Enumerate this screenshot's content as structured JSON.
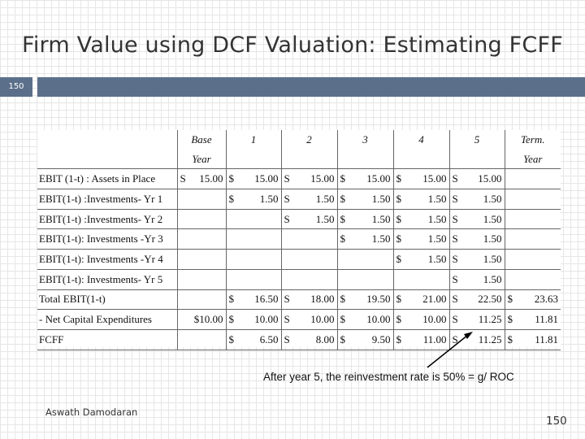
{
  "title": "Firm Value using DCF Valuation: Estimating FCFF",
  "slide_number_tab": "150",
  "table": {
    "headers": [
      "Base",
      "1",
      "2",
      "3",
      "4",
      "5",
      "Term."
    ],
    "subheaders": [
      "Year",
      "",
      "",
      "",
      "",
      "",
      "Year"
    ],
    "rows": [
      {
        "label": "EBIT (1-t) : Assets in Place",
        "cells": [
          [
            "S",
            "15.00"
          ],
          [
            "$",
            "15.00"
          ],
          [
            "S",
            "15.00"
          ],
          [
            "$",
            "15.00"
          ],
          [
            "$",
            "15.00"
          ],
          [
            "S",
            "15.00"
          ],
          [
            "",
            ""
          ]
        ]
      },
      {
        "label": "EBIT(1-t) :Investments- Yr 1",
        "cells": [
          [
            "",
            ""
          ],
          [
            "$",
            "1.50"
          ],
          [
            "S",
            "1.50"
          ],
          [
            "$",
            "1.50"
          ],
          [
            "$",
            "1.50"
          ],
          [
            "S",
            "1.50"
          ],
          [
            "",
            ""
          ]
        ]
      },
      {
        "label": "EBIT(1-t) :Investments- Yr 2",
        "cells": [
          [
            "",
            ""
          ],
          [
            "",
            ""
          ],
          [
            "S",
            "1.50"
          ],
          [
            "$",
            "1.50"
          ],
          [
            "$",
            "1.50"
          ],
          [
            "S",
            "1.50"
          ],
          [
            "",
            ""
          ]
        ]
      },
      {
        "label": "EBIT(1-t): Investments -Yr 3",
        "cells": [
          [
            "",
            ""
          ],
          [
            "",
            ""
          ],
          [
            "",
            ""
          ],
          [
            "$",
            "1.50"
          ],
          [
            "$",
            "1.50"
          ],
          [
            "S",
            "1.50"
          ],
          [
            "",
            ""
          ]
        ]
      },
      {
        "label": "EBIT(1-t): Investments -Yr 4",
        "cells": [
          [
            "",
            ""
          ],
          [
            "",
            ""
          ],
          [
            "",
            ""
          ],
          [
            "",
            ""
          ],
          [
            "$",
            "1.50"
          ],
          [
            "S",
            "1.50"
          ],
          [
            "",
            ""
          ]
        ]
      },
      {
        "label": "EBIT(1-t): Investments- Yr 5",
        "cells": [
          [
            "",
            ""
          ],
          [
            "",
            ""
          ],
          [
            "",
            ""
          ],
          [
            "",
            ""
          ],
          [
            "",
            ""
          ],
          [
            "S",
            "1.50"
          ],
          [
            "",
            ""
          ]
        ]
      },
      {
        "label": "Total EBIT(1-t)",
        "cells": [
          [
            "",
            ""
          ],
          [
            "$",
            "16.50"
          ],
          [
            "S",
            "18.00"
          ],
          [
            "$",
            "19.50"
          ],
          [
            "$",
            "21.00"
          ],
          [
            "S",
            "22.50"
          ],
          [
            "$",
            "23.63"
          ]
        ]
      },
      {
        "label": "- Net Capital Expenditures",
        "cells": [
          [
            "",
            "$10.00"
          ],
          [
            "$",
            "10.00"
          ],
          [
            "S",
            "10.00"
          ],
          [
            "$",
            "10.00"
          ],
          [
            "$",
            "10.00"
          ],
          [
            "S",
            "11.25"
          ],
          [
            "$",
            "11.81"
          ]
        ]
      },
      {
        "label": "FCFF",
        "cells": [
          [
            "",
            ""
          ],
          [
            "$",
            "6.50"
          ],
          [
            "S",
            "8.00"
          ],
          [
            "$",
            "9.50"
          ],
          [
            "$",
            "11.00"
          ],
          [
            "S",
            "11.25"
          ],
          [
            "$",
            "11.81"
          ]
        ]
      }
    ]
  },
  "note": "After year 5, the reinvestment rate is 50% = g/ ROC",
  "footer_author": "Aswath Damodaran",
  "footer_page": "150"
}
